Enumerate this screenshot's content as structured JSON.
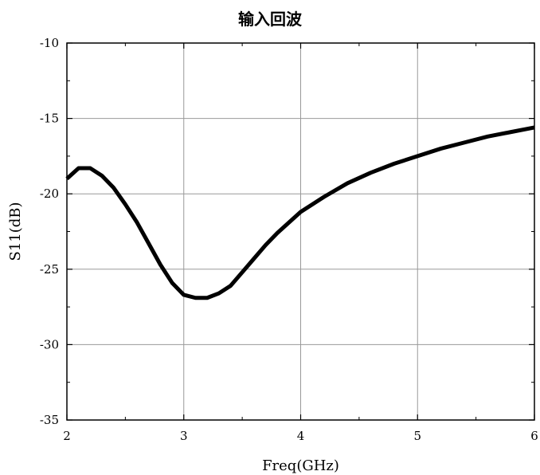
{
  "chart_data": {
    "type": "line",
    "title": "输入回波",
    "xlabel": "Freq(GHz)",
    "ylabel": "S11(dB)",
    "xlim": [
      2,
      6
    ],
    "ylim": [
      -35,
      -10
    ],
    "xticks": [
      2,
      3,
      4,
      5,
      6
    ],
    "yticks": [
      -35,
      -30,
      -25,
      -20,
      -15,
      -10
    ],
    "xtick_labels": [
      "2",
      "3",
      "4",
      "5",
      "6"
    ],
    "ytick_labels": [
      "-35",
      "-30",
      "-25",
      "-20",
      "-15",
      "-10"
    ],
    "grid": true,
    "series": [
      {
        "color": "#000000",
        "x": [
          2.0,
          2.1,
          2.2,
          2.3,
          2.4,
          2.5,
          2.6,
          2.7,
          2.8,
          2.9,
          3.0,
          3.1,
          3.2,
          3.3,
          3.4,
          3.5,
          3.6,
          3.7,
          3.8,
          3.9,
          4.0,
          4.2,
          4.4,
          4.6,
          4.8,
          5.0,
          5.2,
          5.4,
          5.6,
          5.8,
          6.0
        ],
        "y": [
          -19.0,
          -18.3,
          -18.3,
          -18.8,
          -19.6,
          -20.7,
          -21.9,
          -23.3,
          -24.7,
          -25.9,
          -26.7,
          -26.9,
          -26.9,
          -26.6,
          -26.1,
          -25.2,
          -24.3,
          -23.4,
          -22.6,
          -21.9,
          -21.2,
          -20.2,
          -19.3,
          -18.6,
          -18.0,
          -17.5,
          -17.0,
          -16.6,
          -16.2,
          -15.9,
          -15.6
        ]
      }
    ]
  }
}
